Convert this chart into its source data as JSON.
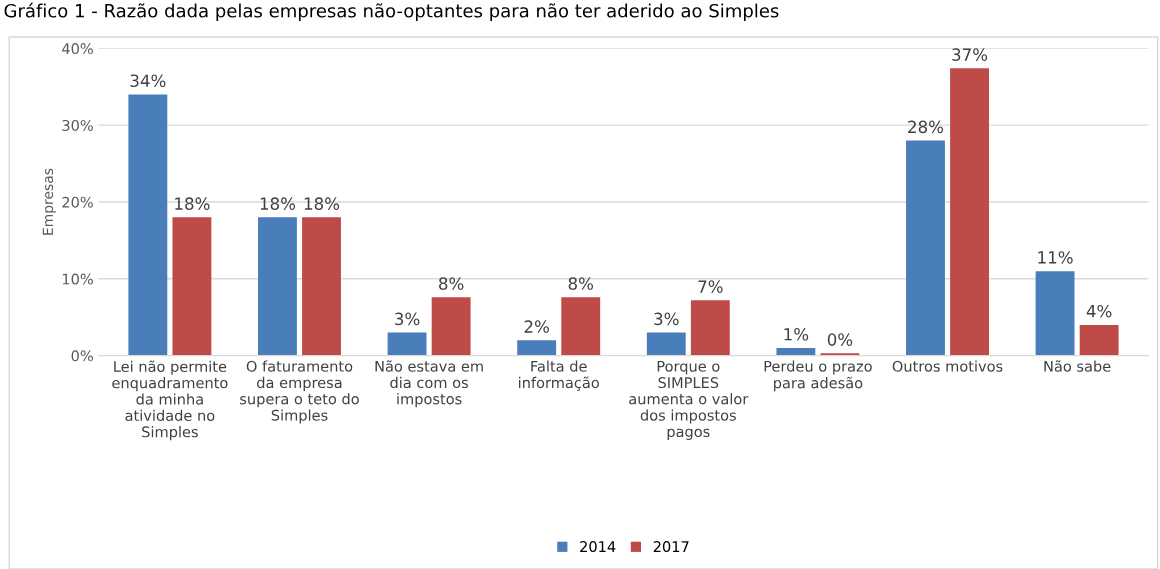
{
  "chart_data": {
    "type": "bar",
    "title": "Gráfico 1 - Razão dada pelas empresas não-optantes para não ter aderido ao Simples",
    "ylabel": "Empresas",
    "categories": [
      "Lei não permite\nenquadramento\nda minha\natividade no\nSimples",
      "O faturamento\nda empresa\nsupera o teto do\nSimples",
      "Não estava em\ndia com os\nimpostos",
      "Falta de\ninformação",
      "Porque o\nSIMPLES\naumenta o valor\ndos impostos\npagos",
      "Perdeu o prazo\npara adesão",
      "Outros motivos",
      "Não sabe"
    ],
    "series": [
      {
        "name": "2014",
        "color": "#4a7ebb",
        "values": [
          34,
          18,
          3,
          2,
          3,
          1,
          28,
          11
        ],
        "value_labels": [
          "34%",
          "18%",
          "3%",
          "2%",
          "3%",
          "1%",
          "28%",
          "11%"
        ]
      },
      {
        "name": "2017",
        "color": "#be4b48",
        "values": [
          18,
          18,
          7.6,
          7.6,
          7.2,
          0.3,
          37.4,
          4
        ],
        "value_labels": [
          "18%",
          "18%",
          "8%",
          "8%",
          "7%",
          "0%",
          "37%",
          "4%"
        ]
      }
    ],
    "ylim": [
      0,
      40
    ],
    "yticks": [
      {
        "value": 0,
        "label": "0%"
      },
      {
        "value": 10,
        "label": "10%"
      },
      {
        "value": 20,
        "label": "20%"
      },
      {
        "value": 30,
        "label": "30%"
      },
      {
        "value": 40,
        "label": "40%"
      }
    ],
    "grid": "y",
    "legend": "bottom"
  }
}
